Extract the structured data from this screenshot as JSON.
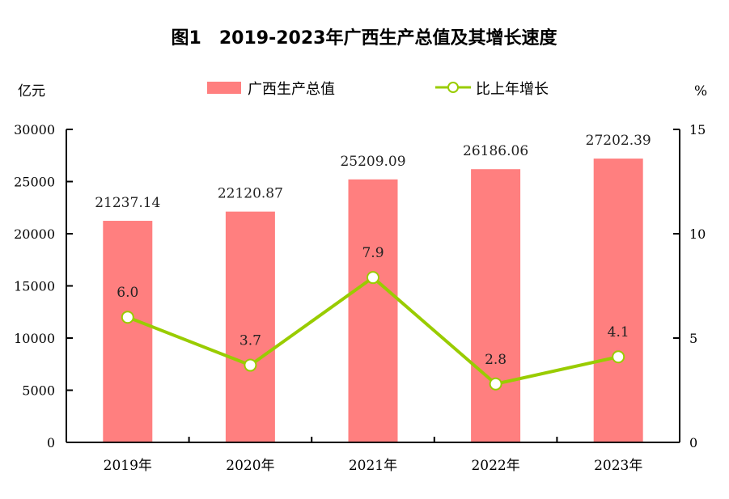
{
  "chart_data": {
    "type": "bar+line",
    "title": "图1　2019-2023年广西生产总值及其增长速度",
    "categories": [
      "2019年",
      "2020年",
      "2021年",
      "2022年",
      "2023年"
    ],
    "series": [
      {
        "name": "广西生产总值",
        "type": "bar",
        "axis": "left",
        "color": "#FF7F7F",
        "values": [
          21237.14,
          22120.87,
          25209.09,
          26186.06,
          27202.39
        ],
        "labels": [
          "21237.14",
          "22120.87",
          "25209.09",
          "26186.06",
          "27202.39"
        ]
      },
      {
        "name": "比上年增长",
        "type": "line",
        "axis": "right",
        "color": "#99CC00",
        "values": [
          6.0,
          3.7,
          7.9,
          2.8,
          4.1
        ],
        "labels": [
          "6.0",
          "3.7",
          "7.9",
          "2.8",
          "4.1"
        ]
      }
    ],
    "y_left": {
      "unit": "亿元",
      "ylim": [
        0,
        30000
      ],
      "ticks": [
        "0",
        "5000",
        "10000",
        "15000",
        "20000",
        "25000",
        "30000"
      ]
    },
    "y_right": {
      "unit": "%",
      "ylim": [
        0,
        15
      ],
      "ticks": [
        "0",
        "5",
        "10",
        "15"
      ]
    },
    "legend": "top",
    "grid": false
  }
}
